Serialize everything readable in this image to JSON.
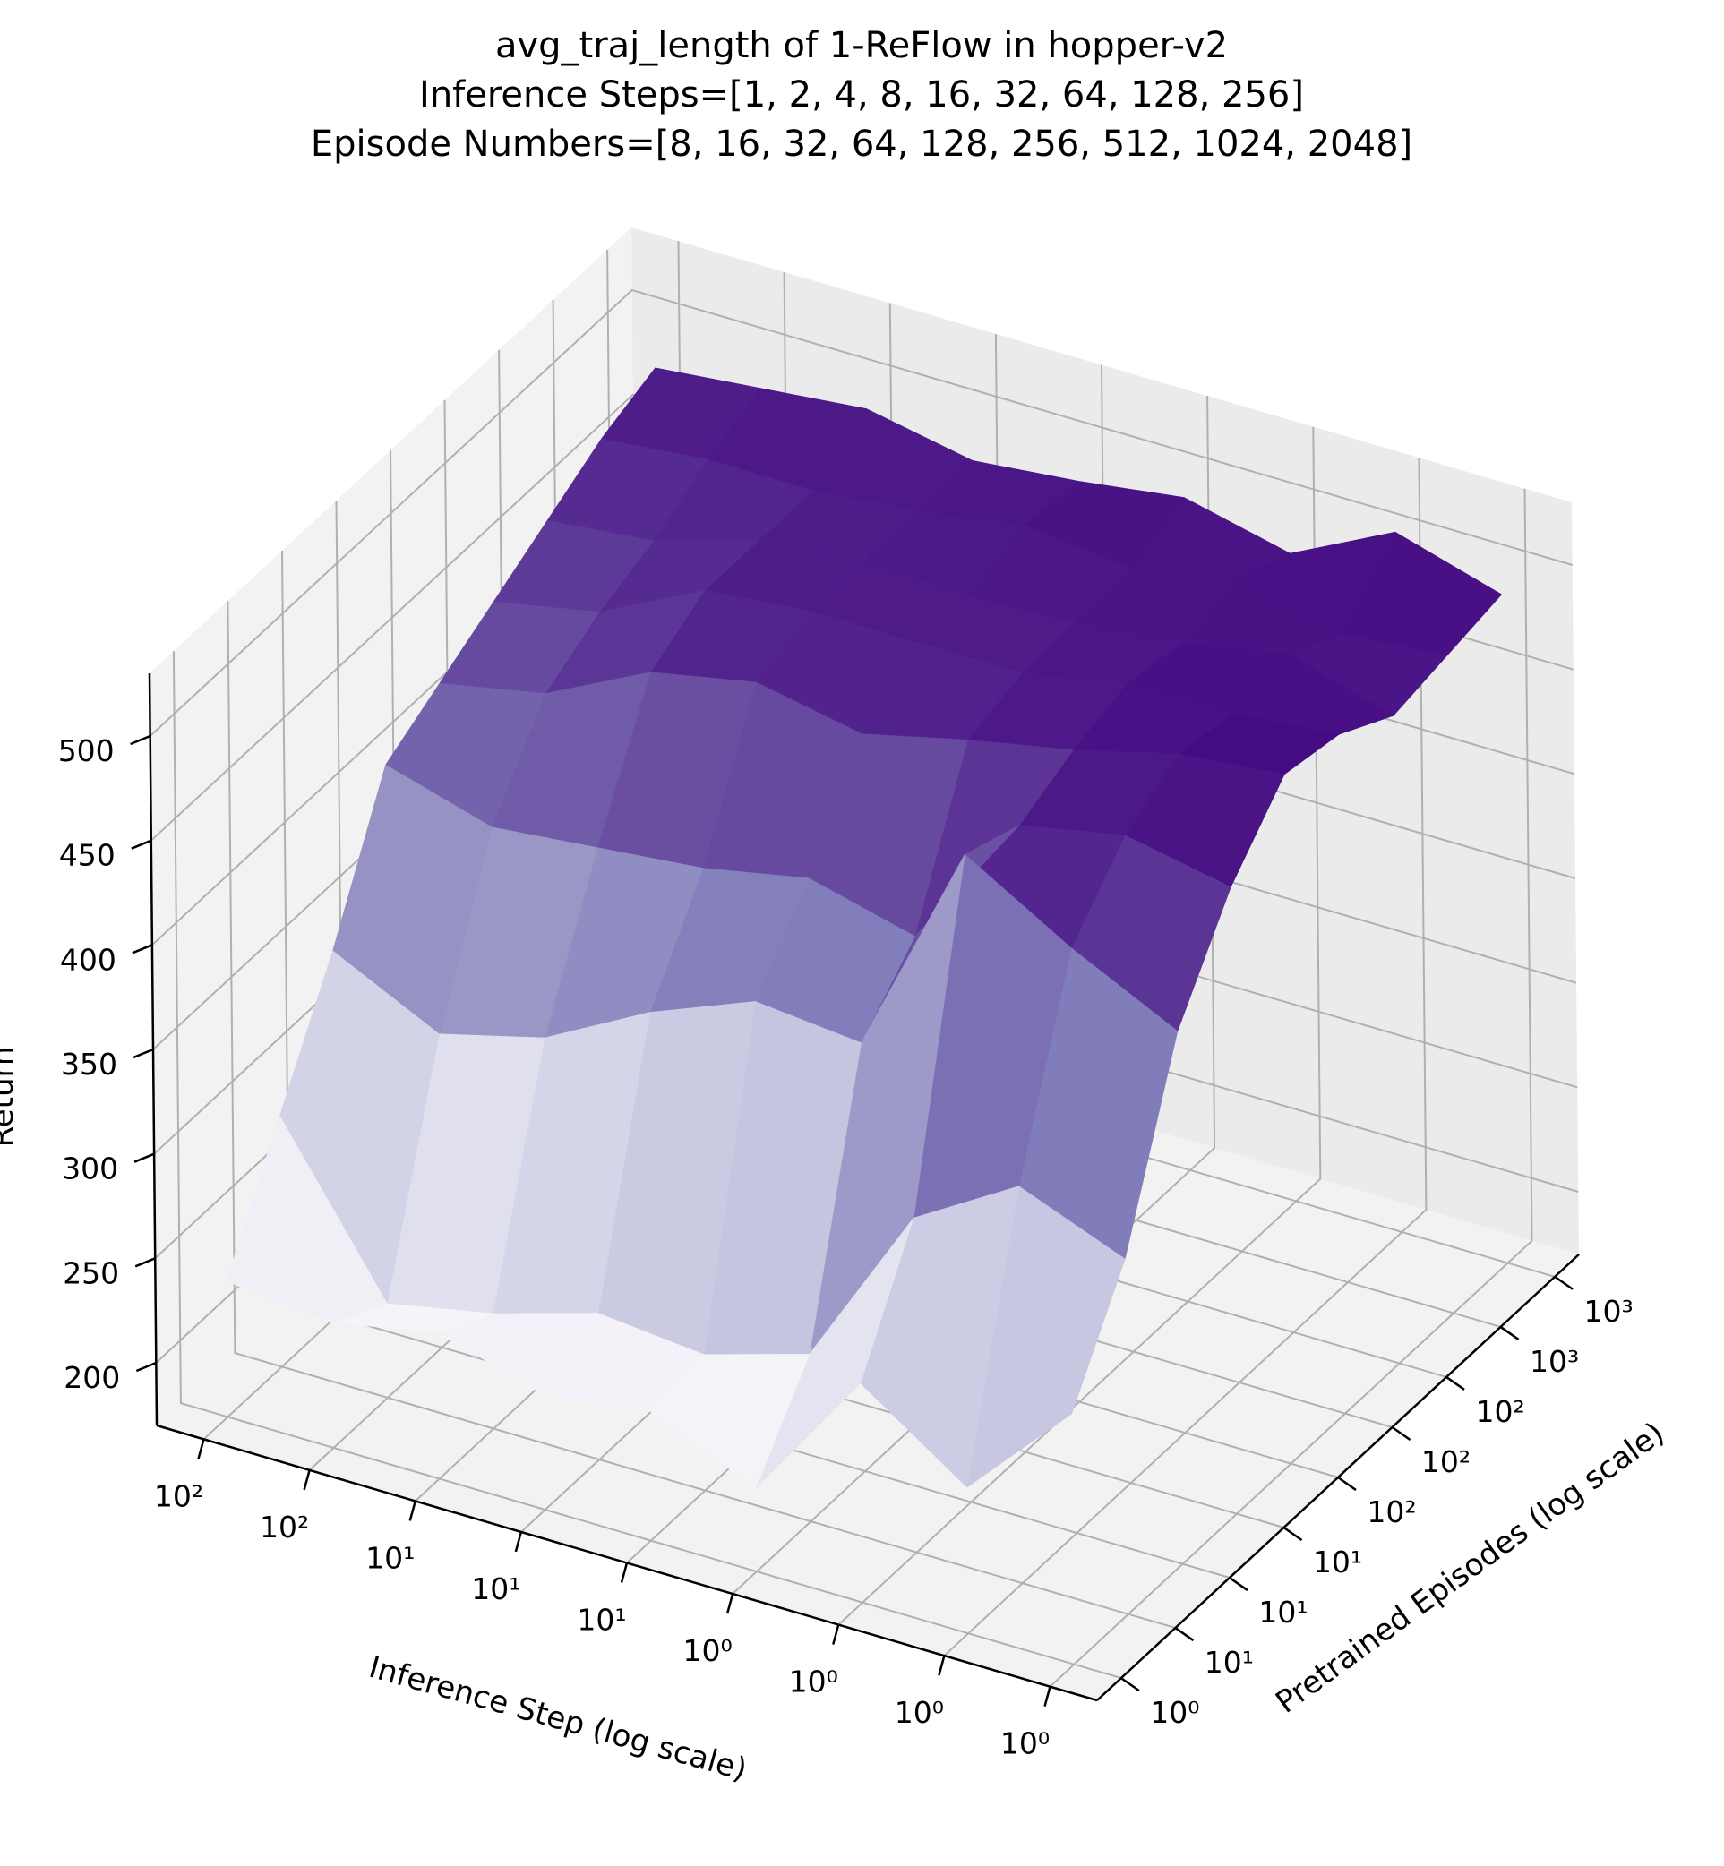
{
  "chart_data": {
    "type": "surface3d",
    "title": [
      "avg_traj_length of 1-ReFlow in hopper-v2",
      "Inference Steps=[1, 2, 4, 8, 16, 32, 64, 128, 256]",
      "Episode Numbers=[8, 16, 32, 64, 128, 256, 512, 1024, 2048]"
    ],
    "xlabel": "Inference Step (log scale)",
    "ylabel": "Pretrained Episodes (log scale)",
    "zlabel": "Return",
    "colormap": "Purples",
    "inference_steps": [
      1,
      2,
      4,
      8,
      16,
      32,
      64,
      128,
      256
    ],
    "episode_numbers": [
      8,
      16,
      32,
      64,
      128,
      256,
      512,
      1024,
      2048
    ],
    "x_tick_labels": [
      "10²",
      "10²",
      "10¹",
      "10¹",
      "10¹",
      "10⁰",
      "10⁰",
      "10⁰",
      "10⁰"
    ],
    "y_tick_labels": [
      "10⁰",
      "10¹",
      "10¹",
      "10¹",
      "10²",
      "10²",
      "10²",
      "10³",
      "10³"
    ],
    "z_ticks": [
      200,
      250,
      300,
      350,
      400,
      450,
      500
    ],
    "zlim": [
      170,
      530
    ],
    "z_values_by_episode_row": [
      [
        235,
        230,
        240,
        225,
        232,
        210,
        275,
        240,
        290
      ],
      [
        290,
        215,
        225,
        240,
        235,
        250,
        330,
        360,
        340
      ],
      [
        345,
        320,
        333,
        360,
        380,
        375,
        480,
        450,
        425
      ],
      [
        410,
        395,
        400,
        405,
        415,
        402,
        470,
        480,
        470
      ],
      [
        425,
        435,
        460,
        470,
        460,
        472,
        482,
        495,
        500
      ],
      [
        440,
        450,
        475,
        480,
        480,
        480,
        490,
        490,
        495
      ],
      [
        455,
        460,
        475,
        480,
        478,
        480,
        485,
        495,
        480
      ],
      [
        470,
        475,
        475,
        480,
        488,
        482,
        492,
        480,
        485
      ],
      [
        480,
        485,
        490,
        480,
        485,
        492,
        480,
        505,
        490
      ]
    ]
  }
}
